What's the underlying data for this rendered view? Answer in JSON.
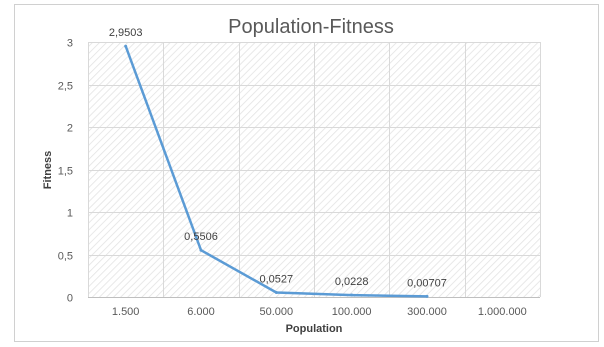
{
  "chart_data": {
    "type": "line",
    "title": "Population-Fitness",
    "xlabel": "Population",
    "ylabel": "Fitness",
    "categories": [
      "1.500",
      "6.000",
      "50.000",
      "100.000",
      "300.000",
      "1.000.000"
    ],
    "series": [
      {
        "values": [
          2.9503,
          0.5506,
          0.0527,
          0.0228,
          0.00707,
          null
        ],
        "labels": [
          "2,9503",
          "0,5506",
          "0,0527",
          "0,0228",
          "0,00707",
          ""
        ],
        "color": "#5b9bd5"
      }
    ],
    "ylim": [
      0,
      3
    ],
    "yticks": [
      0,
      0.5,
      1,
      1.5,
      2,
      2.5,
      3
    ],
    "ytick_labels": [
      "0",
      "0,5",
      "1",
      "1,5",
      "2",
      "2,5",
      "3"
    ],
    "grid": true,
    "plot_background": "#d9d9d9 diagonal hatch",
    "legend": "none"
  }
}
